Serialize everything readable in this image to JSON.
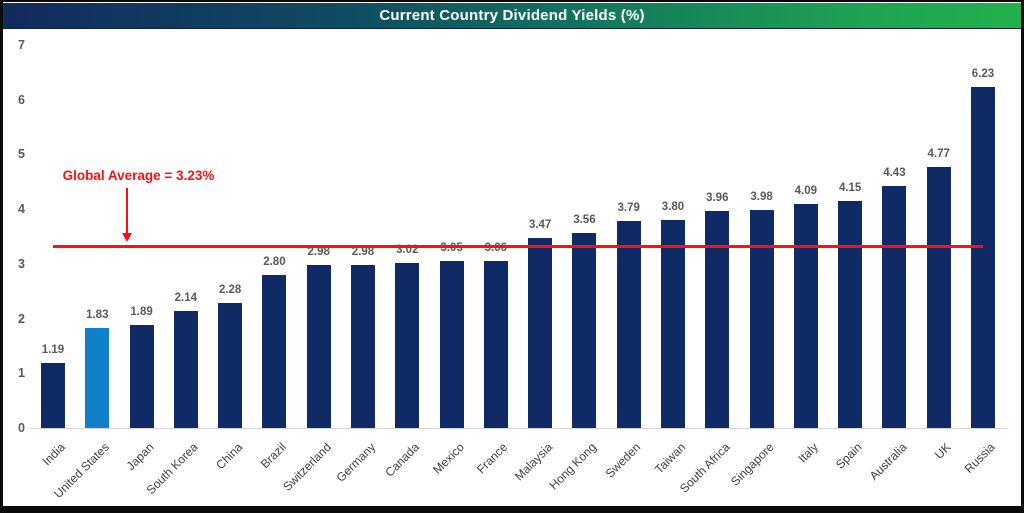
{
  "header": {
    "gradient_left": "#122a5e",
    "gradient_mid": "#147a5c",
    "gradient_right": "#22b14d",
    "text_color": "#ffffff"
  },
  "chart_data": {
    "type": "bar",
    "title": "Current Country Dividend Yields (%)",
    "categories": [
      "India",
      "United States",
      "Japan",
      "South Korea",
      "China",
      "Brazil",
      "Switzerland",
      "Germany",
      "Canada",
      "Mexico",
      "France",
      "Malaysia",
      "Hong Kong",
      "Sweden",
      "Taiwan",
      "South Africa",
      "Singapore",
      "Italy",
      "Spain",
      "Australia",
      "UK",
      "Russia"
    ],
    "values": [
      1.19,
      1.83,
      1.89,
      2.14,
      2.28,
      2.8,
      2.98,
      2.98,
      3.02,
      3.05,
      3.06,
      3.47,
      3.56,
      3.79,
      3.8,
      3.96,
      3.98,
      4.09,
      4.15,
      4.43,
      4.77,
      6.23
    ],
    "value_labels": [
      "1.19",
      "1.83",
      "1.89",
      "2.14",
      "2.28",
      "2.80",
      "2.98",
      "2.98",
      "3.02",
      "3.05",
      "3.06",
      "3.47",
      "3.56",
      "3.79",
      "3.80",
      "3.96",
      "3.98",
      "4.09",
      "4.15",
      "4.43",
      "4.77",
      "6.23"
    ],
    "highlight_index": 1,
    "ylim": [
      0,
      7
    ],
    "ytick_labels": [
      "0",
      "1",
      "2",
      "3",
      "4",
      "5",
      "6",
      "7"
    ],
    "grid": false,
    "legend": "none",
    "average_line": {
      "value": 3.23,
      "label": "Global Average = 3.23%"
    },
    "colors": {
      "bar": "#0f2a64",
      "highlight_bar": "#1180cb",
      "average_line": "#fb0f0f",
      "value_label": "#595959",
      "axis_label": "#595959",
      "category_label": "#3f3f3f"
    }
  }
}
